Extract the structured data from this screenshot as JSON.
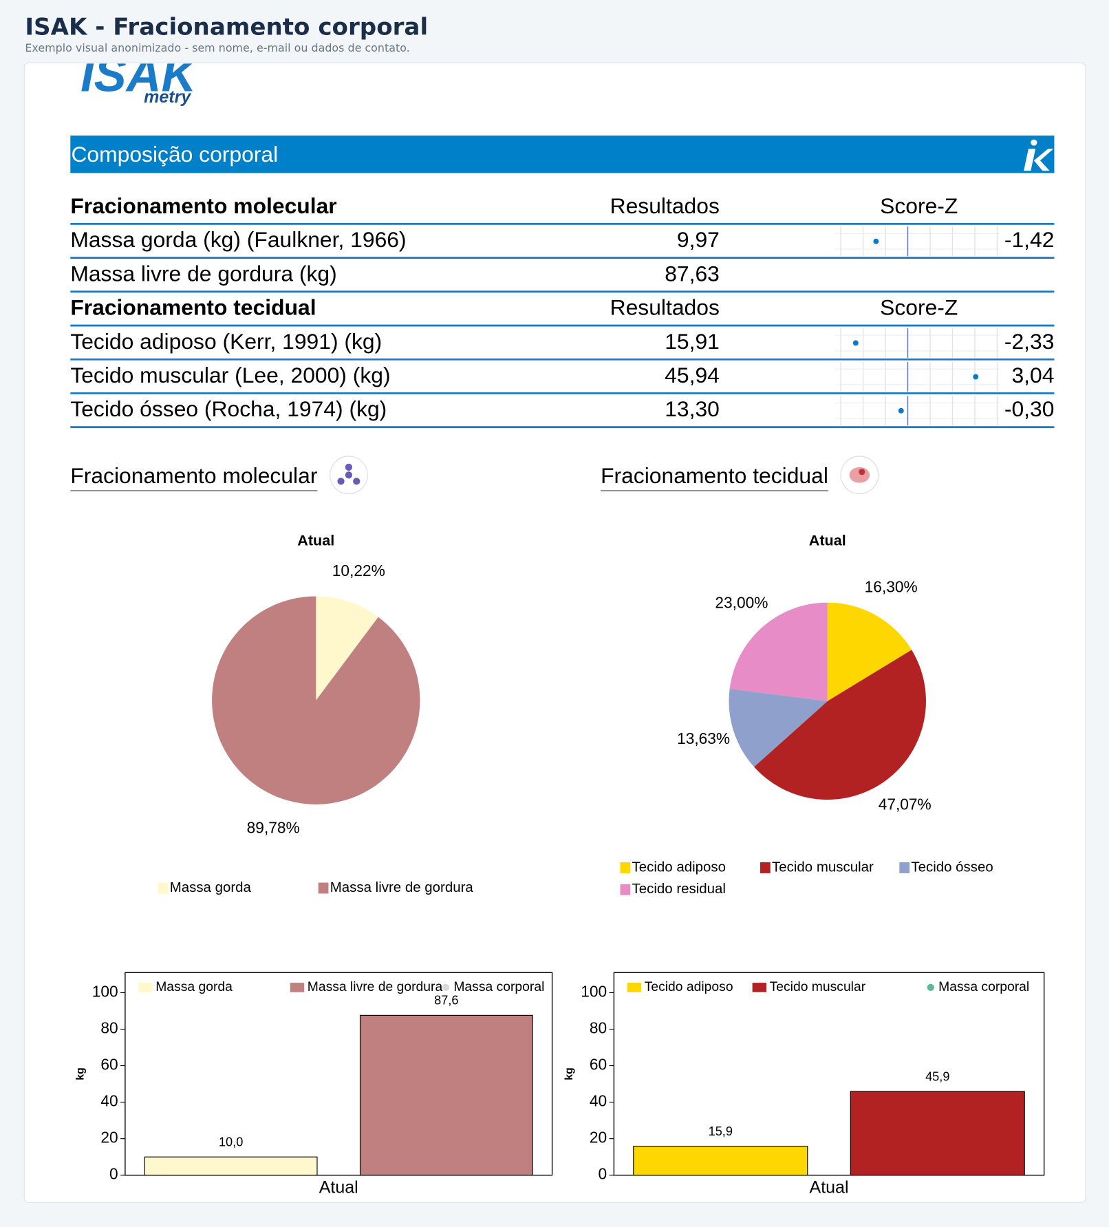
{
  "header": {
    "title": "ISAK - Fracionamento corporal",
    "subtitle": "Exemplo visual anonimizado - sem nome, e-mail ou dados de contato."
  },
  "logo": {
    "text": "ISAK",
    "subtext": "metry"
  },
  "banner": {
    "title": "Composição corporal"
  },
  "table": {
    "zscore_axis": {
      "lim": [
        -3,
        4
      ],
      "ticks": [
        -3,
        -2,
        -1,
        0,
        1,
        2,
        3,
        4
      ]
    },
    "sections": [
      {
        "columns": [
          "Fracionamento molecular",
          "Resultados",
          "Score-Z"
        ],
        "rows": [
          {
            "label": "Massa  gorda (kg) (Faulkner, 1966)",
            "result": "9,97",
            "zscore": {
              "value": -1.42,
              "label": "-1,42"
            }
          },
          {
            "label": "Massa livre de gordura (kg)",
            "result": "87,63"
          }
        ]
      },
      {
        "columns": [
          "Fracionamento tecidual",
          "Resultados",
          "Score-Z"
        ],
        "rows": [
          {
            "label": "Tecido adiposo (Kerr, 1991) (kg)",
            "result": "15,91",
            "zscore": {
              "value": -2.33,
              "label": "-2,33"
            }
          },
          {
            "label": "Tecido muscular (Lee, 2000) (kg)",
            "result": "45,94",
            "zscore": {
              "value": 3.04,
              "label": "3,04"
            }
          },
          {
            "label": "Tecido ósseo (Rocha, 1974) (kg)",
            "result": "13,30",
            "zscore": {
              "value": -0.3,
              "label": "-0,30"
            }
          }
        ]
      }
    ]
  },
  "sections": [
    {
      "title": "Fracionamento molecular"
    },
    {
      "title": "Fracionamento tecidual"
    }
  ],
  "chart_data": [
    {
      "type": "pie",
      "title": "Atual",
      "categories": [
        "Massa gorda",
        "Massa livre de gordura"
      ],
      "values": [
        10.22,
        89.78
      ],
      "value_labels": [
        "10,22%",
        "89,78%"
      ],
      "colors": [
        "#fff8cc",
        "#c08080"
      ]
    },
    {
      "type": "pie",
      "title": "Atual",
      "categories": [
        "Tecido adiposo",
        "Tecido muscular",
        "Tecido ósseo",
        "Tecido residual"
      ],
      "values": [
        16.3,
        47.07,
        13.63,
        23.0
      ],
      "value_labels": [
        "16,30%",
        "47,07%",
        "13,63%",
        "23,00%"
      ],
      "colors": [
        "#ffd700",
        "#b22222",
        "#8fa0cc",
        "#e88cc8"
      ]
    },
    {
      "type": "bar",
      "categories": [
        "Atual"
      ],
      "y_label": "kg",
      "ylim": [
        0,
        111
      ],
      "yticks": [
        0,
        20,
        40,
        60,
        80,
        100
      ],
      "series": [
        {
          "name": "Massa  gorda",
          "color": "#fff8cc",
          "values": [
            10.0
          ],
          "value_labels": [
            "10,0"
          ]
        },
        {
          "name": "Massa livre de gordura",
          "color": "#c08080",
          "values": [
            87.6
          ],
          "value_labels": [
            "87,6"
          ]
        },
        {
          "name": "Massa corporal",
          "color": "#d8d8d8",
          "marker": "circle",
          "values": [
            null
          ]
        }
      ]
    },
    {
      "type": "bar",
      "categories": [
        "Atual"
      ],
      "y_label": "kg",
      "ylim": [
        0,
        111
      ],
      "yticks": [
        0,
        20,
        40,
        60,
        80,
        100
      ],
      "series": [
        {
          "name": "Tecido adiposo",
          "color": "#ffd700",
          "values": [
            15.9
          ],
          "value_labels": [
            "15,9"
          ]
        },
        {
          "name": "Tecido muscular",
          "color": "#b22222",
          "values": [
            45.9
          ],
          "value_labels": [
            "45,9"
          ]
        },
        {
          "name": "Massa corporal",
          "color": "#5cb89a",
          "marker": "circle",
          "values": [
            null
          ]
        }
      ]
    }
  ]
}
